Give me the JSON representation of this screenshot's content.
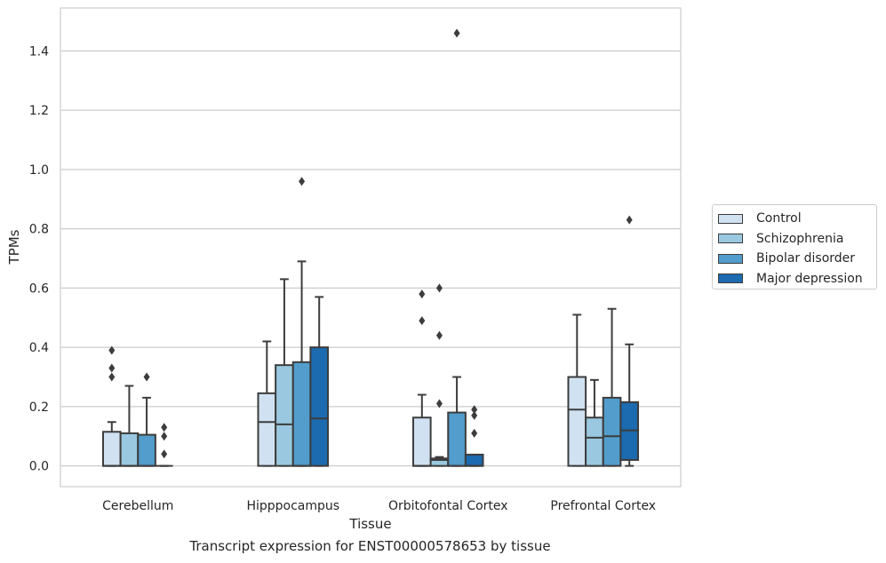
{
  "caption": "Transcript expression for ENST00000578653 by tissue",
  "chart_data": {
    "type": "box",
    "xlabel": "Tissue",
    "ylabel": "TPMs",
    "ylim": [
      -0.07,
      1.545
    ],
    "yticks": [
      0.0,
      0.2,
      0.4,
      0.6,
      0.8,
      1.0,
      1.2,
      1.4
    ],
    "ytick_labels": [
      "0.0",
      "0.2",
      "0.4",
      "0.6",
      "0.8",
      "1.0",
      "1.2",
      "1.4"
    ],
    "grid": "horizontal",
    "legend_position": "right",
    "categories": [
      "Cerebellum",
      "Hipppocampus",
      "Orbitofontal Cortex",
      "Prefrontal Cortex"
    ],
    "series": [
      {
        "name": "Control",
        "color": "#d0e1f2",
        "boxes": [
          {
            "whislo": 0.0,
            "q1": 0.0,
            "med": 0.0,
            "q3": 0.115,
            "whishi": 0.148,
            "fliers": [
              0.3,
              0.33,
              0.39
            ]
          },
          {
            "whislo": 0.0,
            "q1": 0.0,
            "med": 0.148,
            "q3": 0.245,
            "whishi": 0.42,
            "fliers": []
          },
          {
            "whislo": 0.0,
            "q1": 0.0,
            "med": 0.0,
            "q3": 0.163,
            "whishi": 0.24,
            "fliers": [
              0.49,
              0.58
            ]
          },
          {
            "whislo": 0.0,
            "q1": 0.0,
            "med": 0.19,
            "q3": 0.3,
            "whishi": 0.51,
            "fliers": []
          }
        ]
      },
      {
        "name": "Schizophrenia",
        "color": "#9ac8e0",
        "boxes": [
          {
            "whislo": 0.0,
            "q1": 0.0,
            "med": 0.0,
            "q3": 0.11,
            "whishi": 0.27,
            "fliers": []
          },
          {
            "whislo": 0.0,
            "q1": 0.0,
            "med": 0.14,
            "q3": 0.34,
            "whishi": 0.63,
            "fliers": []
          },
          {
            "whislo": 0.0,
            "q1": 0.0,
            "med": 0.02,
            "q3": 0.025,
            "whishi": 0.03,
            "fliers": [
              0.21,
              0.44,
              0.6
            ]
          },
          {
            "whislo": 0.0,
            "q1": 0.0,
            "med": 0.095,
            "q3": 0.163,
            "whishi": 0.29,
            "fliers": []
          }
        ]
      },
      {
        "name": "Bipolar disorder",
        "color": "#529dcc",
        "boxes": [
          {
            "whislo": 0.0,
            "q1": 0.0,
            "med": 0.0,
            "q3": 0.105,
            "whishi": 0.23,
            "fliers": [
              0.3
            ]
          },
          {
            "whislo": 0.0,
            "q1": 0.0,
            "med": 0.0,
            "q3": 0.35,
            "whishi": 0.69,
            "fliers": [
              0.96
            ]
          },
          {
            "whislo": 0.0,
            "q1": 0.0,
            "med": 0.0,
            "q3": 0.18,
            "whishi": 0.3,
            "fliers": [
              1.46
            ]
          },
          {
            "whislo": 0.0,
            "q1": 0.0,
            "med": 0.1,
            "q3": 0.23,
            "whishi": 0.53,
            "fliers": []
          }
        ]
      },
      {
        "name": "Major depression",
        "color": "#1c6aaf",
        "boxes": [
          {
            "whislo": 0.0,
            "q1": 0.0,
            "med": 0.0,
            "q3": 0.0,
            "whishi": 0.0,
            "fliers": [
              0.04,
              0.1,
              0.13
            ]
          },
          {
            "whislo": 0.0,
            "q1": 0.0,
            "med": 0.16,
            "q3": 0.4,
            "whishi": 0.57,
            "fliers": []
          },
          {
            "whislo": 0.0,
            "q1": 0.0,
            "med": 0.0,
            "q3": 0.038,
            "whishi": 0.038,
            "fliers": [
              0.11,
              0.17,
              0.19
            ]
          },
          {
            "whislo": 0.0,
            "q1": 0.02,
            "med": 0.12,
            "q3": 0.215,
            "whishi": 0.41,
            "fliers": [
              0.83
            ]
          }
        ]
      }
    ]
  }
}
